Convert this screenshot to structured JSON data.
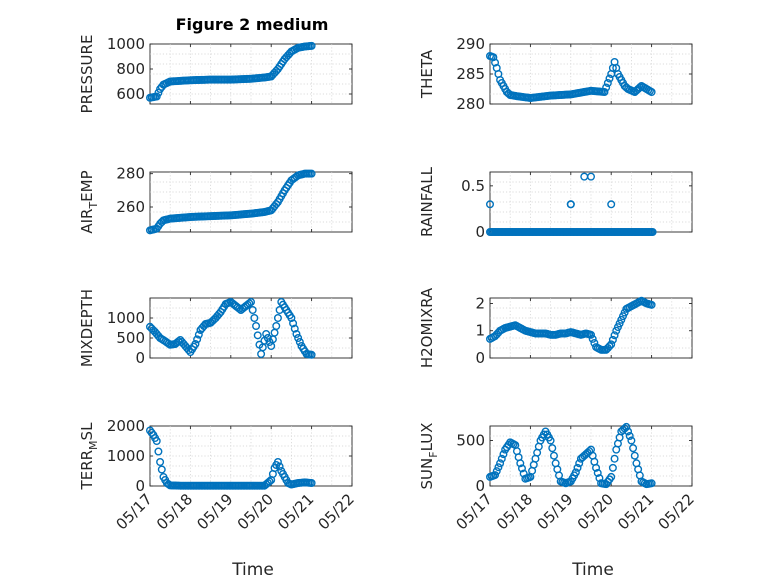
{
  "figure": {
    "title": "Figure 2 medium",
    "background": "#ffffff",
    "marker_color": "#0072bd"
  },
  "x_axis": {
    "label": "Time",
    "range_days": [
      0,
      5
    ],
    "ticks": [
      0,
      1,
      2,
      3,
      4,
      5
    ],
    "tick_labels": [
      "05/17",
      "05/18",
      "05/19",
      "05/20",
      "05/21",
      "05/22"
    ]
  },
  "chart_data": [
    {
      "type": "scatter",
      "ylabel": "PRESSURE",
      "ylabel_sub": "",
      "ylabel_rest": "",
      "ylim": [
        520,
        1000
      ],
      "yticks": [
        600,
        800,
        1000
      ],
      "ytick_labels": [
        "600",
        "800",
        "1000"
      ],
      "marker": "circle",
      "grid": true,
      "x": [
        "05/17 00:00",
        "05/17 04:00",
        "05/17 06:00",
        "05/17 08:00",
        "05/17 12:00",
        "05/17 18:00",
        "05/18 00:00",
        "05/18 12:00",
        "05/19 00:00",
        "05/19 12:00",
        "05/19 20:00",
        "05/20 00:00",
        "05/20 04:00",
        "05/20 08:00",
        "05/20 12:00",
        "05/20 16:00",
        "05/20 20:00",
        "05/21 00:00"
      ],
      "y": [
        570,
        580,
        640,
        675,
        700,
        705,
        710,
        715,
        715,
        722,
        732,
        740,
        800,
        880,
        940,
        970,
        980,
        985
      ]
    },
    {
      "type": "scatter",
      "ylabel": "THETA",
      "ylabel_sub": "",
      "ylabel_rest": "",
      "ylim": [
        280,
        290
      ],
      "yticks": [
        280,
        285,
        290
      ],
      "ytick_labels": [
        "280",
        "285",
        "290"
      ],
      "marker": "circle",
      "grid": true,
      "x": [
        "05/17 00:00",
        "05/17 02:00",
        "05/17 04:00",
        "05/17 06:00",
        "05/17 08:00",
        "05/17 10:00",
        "05/17 12:00",
        "05/17 16:00",
        "05/18 00:00",
        "05/18 12:00",
        "05/19 00:00",
        "05/19 12:00",
        "05/19 20:00",
        "05/20 00:00",
        "05/20 02:00",
        "05/20 04:00",
        "05/20 06:00",
        "05/20 08:00",
        "05/20 10:00",
        "05/20 14:00",
        "05/20 18:00",
        "05/21 00:00"
      ],
      "y": [
        288,
        287.8,
        286,
        284,
        283,
        282,
        281.5,
        281.3,
        281,
        281.4,
        281.6,
        282.2,
        282,
        285,
        287,
        285,
        284,
        283,
        282.5,
        282,
        283,
        282
      ]
    },
    {
      "type": "scatter",
      "ylabel": "AIR",
      "ylabel_sub": "T",
      "ylabel_rest": "EMP",
      "ylim": [
        245,
        281
      ],
      "yticks": [
        260,
        280
      ],
      "ytick_labels": [
        "260",
        "280"
      ],
      "marker": "circle",
      "grid": true,
      "x": [
        "05/17 00:00",
        "05/17 04:00",
        "05/17 06:00",
        "05/17 08:00",
        "05/17 12:00",
        "05/18 00:00",
        "05/18 12:00",
        "05/19 00:00",
        "05/19 12:00",
        "05/19 20:00",
        "05/20 00:00",
        "05/20 04:00",
        "05/20 08:00",
        "05/20 12:00",
        "05/20 16:00",
        "05/20 20:00",
        "05/21 00:00"
      ],
      "y": [
        246,
        247,
        250,
        252,
        253,
        254,
        254.5,
        255,
        256,
        257,
        258,
        263,
        270,
        276,
        279,
        280,
        280
      ]
    },
    {
      "type": "scatter",
      "ylabel": "RAINFALL",
      "ylabel_sub": "",
      "ylabel_rest": "",
      "ylim": [
        0,
        0.65
      ],
      "yticks": [
        0,
        0.5
      ],
      "ytick_labels": [
        "0",
        "0.5"
      ],
      "marker": "circle",
      "grid": true,
      "x": [
        "05/17 00:00",
        "05/17 03:00",
        "05/17 06:00",
        "05/17 09:00",
        "05/17 12:00",
        "05/17 15:00",
        "05/17 18:00",
        "05/17 21:00",
        "05/18 00:00",
        "05/18 03:00",
        "05/18 06:00",
        "05/18 09:00",
        "05/18 12:00",
        "05/18 15:00",
        "05/18 18:00",
        "05/18 21:00",
        "05/19 00:00",
        "05/19 03:00",
        "05/19 06:00",
        "05/19 09:00",
        "05/19 12:00",
        "05/19 15:00",
        "05/19 18:00",
        "05/19 21:00",
        "05/20 00:00",
        "05/20 03:00",
        "05/20 06:00",
        "05/20 09:00",
        "05/20 12:00",
        "05/20 15:00",
        "05/20 18:00",
        "05/20 21:00",
        "05/21 00:00",
        "05/17 00:00",
        "05/19 00:00",
        "05/19 00:00",
        "05/19 08:00",
        "05/19 12:00",
        "05/20 00:00"
      ],
      "y": [
        0,
        0,
        0,
        0,
        0,
        0,
        0,
        0,
        0,
        0,
        0,
        0,
        0,
        0,
        0,
        0,
        0,
        0,
        0,
        0,
        0,
        0,
        0,
        0,
        0,
        0,
        0,
        0,
        0,
        0,
        0,
        0,
        0,
        0.3,
        0.3,
        0.3,
        0.6,
        0.6,
        0.3
      ]
    },
    {
      "type": "scatter",
      "ylabel": "MIXDEPTH",
      "ylabel_sub": "",
      "ylabel_rest": "",
      "ylim": [
        0,
        1500
      ],
      "yticks": [
        0,
        500,
        1000
      ],
      "ytick_labels": [
        "0",
        "500",
        "1000"
      ],
      "marker": "circle",
      "grid": true,
      "x": [
        "05/17 00:00",
        "05/17 03:00",
        "05/17 06:00",
        "05/17 09:00",
        "05/17 12:00",
        "05/17 15:00",
        "05/17 18:00",
        "05/17 21:00",
        "05/18 00:00",
        "05/18 03:00",
        "05/18 06:00",
        "05/18 09:00",
        "05/18 12:00",
        "05/18 15:00",
        "05/18 18:00",
        "05/18 21:00",
        "05/19 00:00",
        "05/19 03:00",
        "05/19 06:00",
        "05/19 09:00",
        "05/19 12:00",
        "05/19 15:00",
        "05/19 18:00",
        "05/19 21:00",
        "05/20 00:00",
        "05/20 03:00",
        "05/20 06:00",
        "05/20 09:00",
        "05/20 12:00",
        "05/20 15:00",
        "05/20 18:00",
        "05/20 21:00",
        "05/21 00:00"
      ],
      "y": [
        780,
        650,
        500,
        420,
        330,
        350,
        450,
        300,
        150,
        350,
        700,
        850,
        880,
        1000,
        1150,
        1350,
        1400,
        1300,
        1200,
        1300,
        1400,
        800,
        100,
        600,
        300,
        800,
        1400,
        1200,
        1000,
        600,
        300,
        100,
        80
      ]
    },
    {
      "type": "scatter",
      "ylabel": "H2OMIXRA",
      "ylabel_sub": "",
      "ylabel_rest": "",
      "ylim": [
        0,
        2.2
      ],
      "yticks": [
        0,
        1,
        2
      ],
      "ytick_labels": [
        "0",
        "1",
        "2"
      ],
      "marker": "circle",
      "grid": true,
      "x": [
        "05/17 00:00",
        "05/17 03:00",
        "05/17 06:00",
        "05/17 09:00",
        "05/17 12:00",
        "05/17 15:00",
        "05/17 18:00",
        "05/17 21:00",
        "05/18 00:00",
        "05/18 03:00",
        "05/18 06:00",
        "05/18 09:00",
        "05/18 12:00",
        "05/18 15:00",
        "05/18 18:00",
        "05/18 21:00",
        "05/19 00:00",
        "05/19 03:00",
        "05/19 06:00",
        "05/19 09:00",
        "05/19 12:00",
        "05/19 15:00",
        "05/19 18:00",
        "05/19 21:00",
        "05/20 00:00",
        "05/20 03:00",
        "05/20 06:00",
        "05/20 09:00",
        "05/20 12:00",
        "05/20 15:00",
        "05/20 18:00",
        "05/20 21:00",
        "05/21 00:00"
      ],
      "y": [
        0.7,
        0.8,
        1.0,
        1.1,
        1.15,
        1.2,
        1.1,
        1.0,
        0.95,
        0.9,
        0.9,
        0.9,
        0.85,
        0.85,
        0.9,
        0.9,
        0.95,
        0.9,
        0.85,
        0.9,
        0.85,
        0.4,
        0.3,
        0.3,
        0.5,
        1.0,
        1.4,
        1.8,
        1.9,
        2.0,
        2.1,
        2.0,
        1.95
      ]
    },
    {
      "type": "scatter",
      "ylabel": "TERR",
      "ylabel_sub": "M",
      "ylabel_rest": "SL",
      "ylim": [
        0,
        2000
      ],
      "yticks": [
        0,
        1000,
        2000
      ],
      "ytick_labels": [
        "0",
        "1000",
        "2000"
      ],
      "marker": "circle",
      "grid": true,
      "x": [
        "05/17 00:00",
        "05/17 02:00",
        "05/17 04:00",
        "05/17 06:00",
        "05/17 08:00",
        "05/17 10:00",
        "05/17 12:00",
        "05/17 18:00",
        "05/18 00:00",
        "05/18 12:00",
        "05/19 00:00",
        "05/19 12:00",
        "05/19 20:00",
        "05/20 00:00",
        "05/20 02:00",
        "05/20 04:00",
        "05/20 06:00",
        "05/20 08:00",
        "05/20 10:00",
        "05/20 12:00",
        "05/20 16:00",
        "05/20 20:00",
        "05/21 00:00"
      ],
      "y": [
        1850,
        1700,
        1500,
        800,
        300,
        100,
        20,
        10,
        10,
        10,
        10,
        10,
        10,
        200,
        600,
        800,
        500,
        300,
        100,
        50,
        100,
        120,
        100
      ]
    },
    {
      "type": "scatter",
      "ylabel": "SUN",
      "ylabel_sub": "F",
      "ylabel_rest": "LUX",
      "ylim": [
        0,
        660
      ],
      "yticks": [
        0,
        500
      ],
      "ytick_labels": [
        "0",
        "500"
      ],
      "marker": "circle",
      "grid": true,
      "x": [
        "05/17 00:00",
        "05/17 03:00",
        "05/17 06:00",
        "05/17 09:00",
        "05/17 12:00",
        "05/17 15:00",
        "05/17 18:00",
        "05/17 21:00",
        "05/18 00:00",
        "05/18 03:00",
        "05/18 06:00",
        "05/18 09:00",
        "05/18 12:00",
        "05/18 15:00",
        "05/18 18:00",
        "05/18 21:00",
        "05/19 00:00",
        "05/19 03:00",
        "05/19 06:00",
        "05/19 09:00",
        "05/19 12:00",
        "05/19 15:00",
        "05/19 18:00",
        "05/19 21:00",
        "05/20 00:00",
        "05/20 03:00",
        "05/20 06:00",
        "05/20 09:00",
        "05/20 12:00",
        "05/20 15:00",
        "05/20 18:00",
        "05/20 21:00",
        "05/21 00:00"
      ],
      "y": [
        100,
        120,
        250,
        400,
        480,
        450,
        250,
        80,
        100,
        300,
        500,
        600,
        500,
        250,
        50,
        30,
        50,
        150,
        300,
        350,
        400,
        200,
        30,
        20,
        100,
        400,
        600,
        650,
        500,
        250,
        50,
        20,
        30
      ]
    }
  ]
}
